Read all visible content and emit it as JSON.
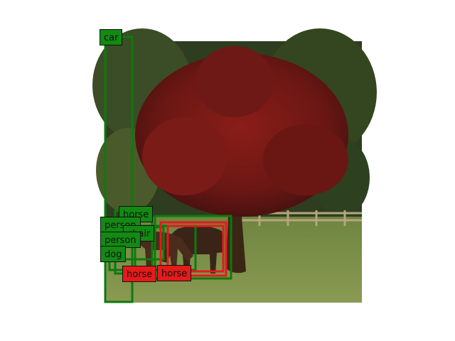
{
  "image": {
    "description_colors": {
      "sky_trees_dark": "#2c3a1f",
      "grass": "#7c8a4a",
      "canopy": "#6b1a16",
      "trunk": "#3b2616",
      "fence": "#b7a57f",
      "horse": "#3a2418"
    }
  },
  "styles": {
    "gt_color": "#0d7a0d",
    "pred_color": "#e51a1a"
  },
  "detections": [
    {
      "label": "car",
      "kind": "gt"
    },
    {
      "label": "horse",
      "kind": "gt"
    },
    {
      "label": "person",
      "kind": "gt"
    },
    {
      "label": "chair",
      "kind": "gt"
    },
    {
      "label": "person",
      "kind": "gt"
    },
    {
      "label": "dog",
      "kind": "gt"
    },
    {
      "label": "horse",
      "kind": "pred"
    },
    {
      "label": "horse",
      "kind": "pred"
    }
  ]
}
